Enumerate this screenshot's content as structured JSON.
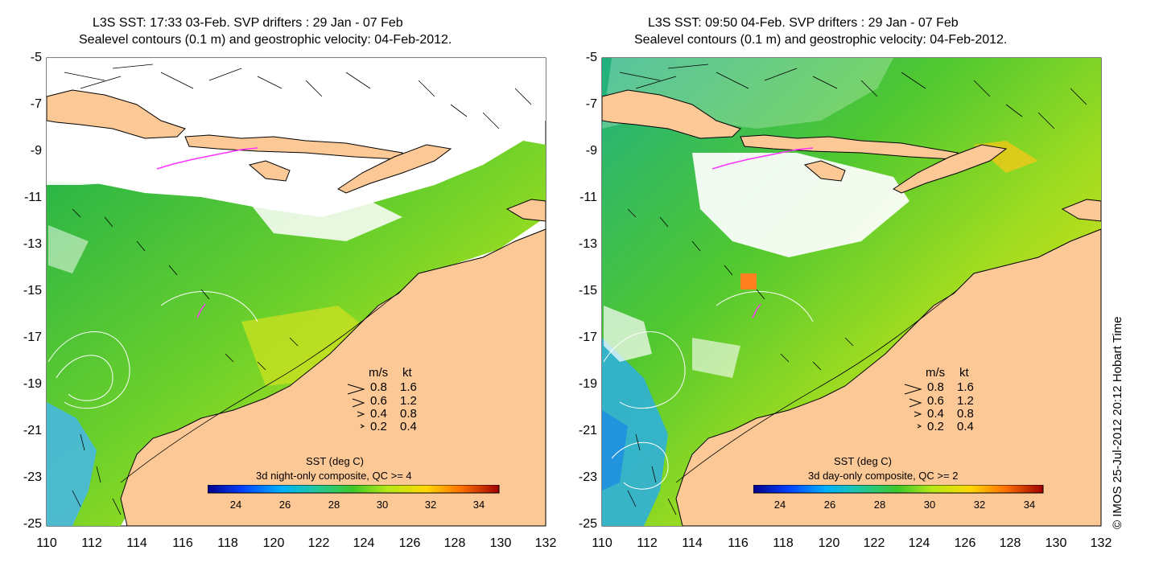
{
  "credit": "© IMOS 25-Jul-2012 20:12 Hobart Time",
  "axes": {
    "lon_ticks": [
      "110",
      "112",
      "114",
      "116",
      "118",
      "120",
      "122",
      "124",
      "126",
      "128",
      "130",
      "132"
    ],
    "lat_ticks": [
      "-5",
      "-7",
      "-9",
      "-11",
      "-13",
      "-15",
      "-17",
      "-19",
      "-21",
      "-23",
      "-25"
    ],
    "xlim": [
      110,
      132
    ],
    "ylim": [
      -25,
      -5
    ]
  },
  "legend": {
    "header_ms": "m/s",
    "header_kt": "kt",
    "rows": [
      {
        "ms": "0.8",
        "kt": "1.6"
      },
      {
        "ms": "0.6",
        "kt": "1.2"
      },
      {
        "ms": "0.4",
        "kt": "0.8"
      },
      {
        "ms": "0.2",
        "kt": "0.4"
      }
    ]
  },
  "colorbar": {
    "title": "SST (deg C)",
    "ticks": [
      "24",
      "26",
      "28",
      "30",
      "32",
      "34"
    ],
    "range": [
      23,
      35
    ]
  },
  "colors": {
    "land": "#fcc896",
    "ocean_no_data": "#ffffff",
    "contours": "#ffffff",
    "drifter": "#ff33ff"
  },
  "panels": [
    {
      "title_line1": "L3S SST: 17:33 03-Feb. SVP drifters : 29 Jan - 07 Feb",
      "title_line2": "Sealevel contours (0.1 m) and geostrophic velocity: 04-Feb-2012.",
      "composite": "3d night-only composite, QC >= 4"
    },
    {
      "title_line1": "L3S SST: 09:50 04-Feb. SVP drifters : 29 Jan - 07 Feb",
      "title_line2": "Sealevel contours (0.1 m) and geostrophic velocity: 04-Feb-2012.",
      "composite": "3d day-only composite, QC >= 2"
    }
  ]
}
